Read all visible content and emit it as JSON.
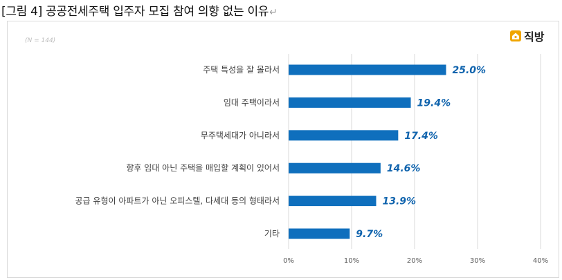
{
  "document": {
    "title": "[그림 4]  공공전세주택 입주자 모집 참여 의향 없는 이유",
    "return_mark": "↵"
  },
  "logo": {
    "text": "직방",
    "icon": "home-logo-icon",
    "color": "#f0a500"
  },
  "chart_data": {
    "type": "bar",
    "orientation": "horizontal",
    "note": "(N = 144)",
    "categories": [
      "주택 특성을 잘 몰라서",
      "임대 주택이라서",
      "무주택세대가 아니라서",
      "향후 임대 아닌 주택을 매입할 계획이 있어서",
      "공급 유형이 아파트가 아닌 오피스텔, 다세대 등의 형태라서",
      "기타"
    ],
    "values": [
      25.0,
      19.4,
      17.4,
      14.6,
      13.9,
      9.7
    ],
    "value_labels": [
      "25.0%",
      "19.4%",
      "17.4%",
      "14.6%",
      "13.9%",
      "9.7%"
    ],
    "xlim": [
      0,
      40
    ],
    "xticks": [
      0,
      10,
      20,
      30,
      40
    ],
    "xtick_labels": [
      "0%",
      "10%",
      "20%",
      "30%",
      "40%"
    ],
    "grid": true,
    "bar_color": "#0f6fbd",
    "label_color": "#0f63ad"
  }
}
